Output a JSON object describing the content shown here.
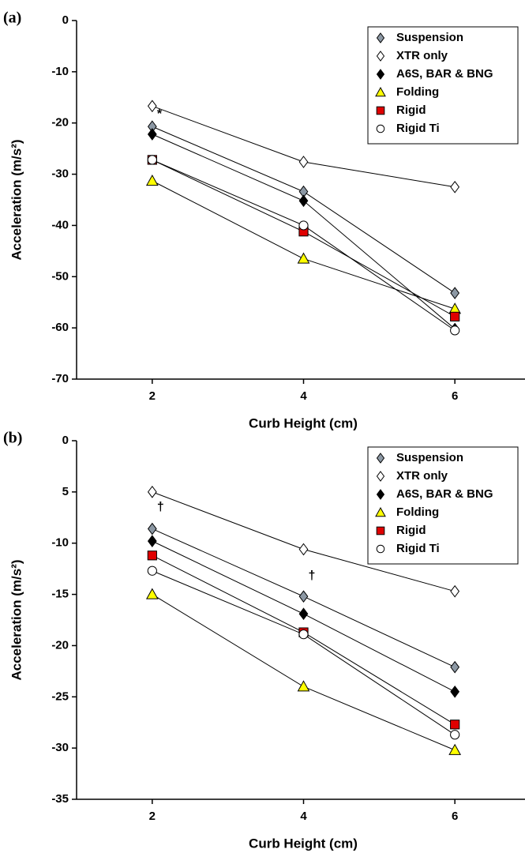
{
  "chart_data": [
    {
      "type": "line",
      "panel_label": "(a)",
      "ylabel": "Acceleration (m/s²)",
      "xlabel": "Curb Height (cm)",
      "x": [
        2,
        4,
        6
      ],
      "xlim": [
        1,
        7
      ],
      "xticks": [
        2,
        4,
        6
      ],
      "ylim": [
        -70,
        0
      ],
      "yticks": [
        0,
        -10,
        -20,
        -30,
        -40,
        -50,
        -60,
        -70
      ],
      "legend": "top-right",
      "annotations": [
        "*"
      ],
      "series": [
        {
          "name": "Suspension",
          "marker": "diamond",
          "color": "#8c98a4",
          "values": [
            -20.7,
            -33.4,
            -53.2
          ]
        },
        {
          "name": "XTR only",
          "marker": "diamond",
          "color": "#ffffff",
          "values": [
            -16.7,
            -27.6,
            -32.5
          ]
        },
        {
          "name": "A6S, BAR & BNG",
          "marker": "diamond",
          "color": "#000000",
          "values": [
            -22.2,
            -35.2,
            -60.2
          ]
        },
        {
          "name": "Folding",
          "marker": "triangle",
          "color": "#ffff00",
          "values": [
            -31.3,
            -46.5,
            -56.3
          ]
        },
        {
          "name": "Rigid",
          "marker": "square",
          "color": "#e00000",
          "values": [
            -27.2,
            -41.2,
            -57.8
          ]
        },
        {
          "name": "Rigid Ti",
          "marker": "circle",
          "color": "#ffffff",
          "values": [
            -27.2,
            -40.0,
            -60.5
          ]
        }
      ]
    },
    {
      "type": "line",
      "panel_label": "(b)",
      "ylabel": "Acceleration (m/s²)",
      "xlabel": "Curb Height (cm)",
      "x": [
        2,
        4,
        6
      ],
      "xlim": [
        1,
        7
      ],
      "xticks": [
        2,
        4,
        6
      ],
      "ylim": [
        -35,
        0
      ],
      "yticks": [
        0,
        {
          "value": -5,
          "label": "5"
        },
        -10,
        -15,
        -20,
        -25,
        -30,
        -35
      ],
      "legend": "top-right",
      "annotations": [
        "†",
        "†"
      ],
      "series": [
        {
          "name": "Suspension",
          "marker": "diamond",
          "color": "#8c98a4",
          "values": [
            -8.6,
            -15.2,
            -22.1
          ]
        },
        {
          "name": "XTR only",
          "marker": "diamond",
          "color": "#ffffff",
          "values": [
            -5.0,
            -10.6,
            -14.7
          ]
        },
        {
          "name": "A6S, BAR & BNG",
          "marker": "diamond",
          "color": "#000000",
          "values": [
            -9.8,
            -16.9,
            -24.5
          ]
        },
        {
          "name": "Folding",
          "marker": "triangle",
          "color": "#ffff00",
          "values": [
            -15.0,
            -24.0,
            -30.2
          ]
        },
        {
          "name": "Rigid",
          "marker": "square",
          "color": "#e00000",
          "values": [
            -11.2,
            -18.7,
            -27.7
          ]
        },
        {
          "name": "Rigid Ti",
          "marker": "circle",
          "color": "#ffffff",
          "values": [
            -12.7,
            -18.9,
            -28.7
          ]
        }
      ]
    }
  ]
}
